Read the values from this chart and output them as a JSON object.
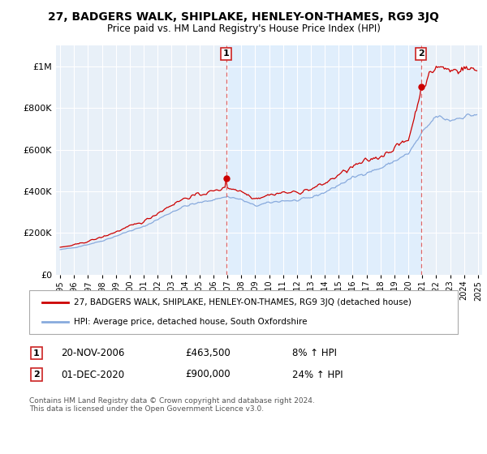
{
  "title": "27, BADGERS WALK, SHIPLAKE, HENLEY-ON-THAMES, RG9 3JQ",
  "subtitle": "Price paid vs. HM Land Registry's House Price Index (HPI)",
  "legend_line1": "27, BADGERS WALK, SHIPLAKE, HENLEY-ON-THAMES, RG9 3JQ (detached house)",
  "legend_line2": "HPI: Average price, detached house, South Oxfordshire",
  "sale1_date": "20-NOV-2006",
  "sale1_price": "£463,500",
  "sale1_hpi": "8% ↑ HPI",
  "sale2_date": "01-DEC-2020",
  "sale2_price": "£900,000",
  "sale2_hpi": "24% ↑ HPI",
  "footnote": "Contains HM Land Registry data © Crown copyright and database right 2024.\nThis data is licensed under the Open Government Licence v3.0.",
  "ylim": [
    0,
    1100000
  ],
  "yticks": [
    0,
    200000,
    400000,
    600000,
    800000,
    1000000
  ],
  "line_color_red": "#cc0000",
  "line_color_blue": "#88aadd",
  "vline_color": "#dd6666",
  "fill_color": "#ddeeff",
  "background_color": "#e8f0f8",
  "sale1_year": 2006.917,
  "sale2_year": 2020.917,
  "sale1_price_val": 463500,
  "sale2_price_val": 900000
}
